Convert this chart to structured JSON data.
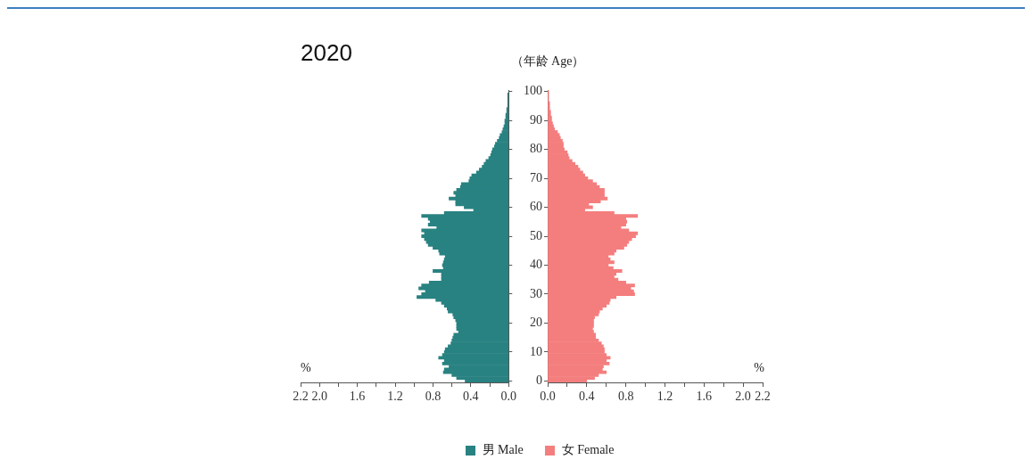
{
  "chart_data": [
    {
      "type": "bar",
      "orientation": "horizontal",
      "title": "2020",
      "xlabel": "%",
      "tick_labels": "x",
      "legend": "bottom",
      "categories": [
        "100",
        null,
        null,
        null,
        null,
        null,
        null,
        null,
        null,
        null,
        "90",
        null,
        null,
        null,
        null,
        null,
        null,
        null,
        null,
        null,
        "80",
        null,
        null,
        null,
        null,
        null,
        null,
        null,
        null,
        null,
        "70",
        null,
        null,
        null,
        null,
        null,
        null,
        null,
        null,
        null,
        "60",
        null,
        null,
        null,
        null,
        null,
        null,
        null,
        null,
        null,
        "50",
        null,
        null,
        null,
        null,
        null,
        null,
        null,
        null,
        null,
        "40",
        null,
        null,
        null,
        null,
        null,
        null,
        null,
        null,
        null,
        "30",
        null,
        null,
        null,
        null,
        null,
        null,
        null,
        null,
        null,
        "20",
        null,
        null,
        null,
        null,
        null,
        null,
        null,
        null,
        null,
        "10",
        null,
        null,
        null,
        null,
        null,
        null,
        null,
        null,
        null,
        "0"
      ],
      "xlim": [
        2.2,
        0
      ],
      "xticks": [
        {
          "value": 2.2,
          "label": "2.2"
        },
        {
          "value": 2,
          "label": "2.0"
        },
        {
          "value": 1.8,
          "label": null
        },
        {
          "value": 1.6,
          "label": "1.6"
        },
        {
          "value": 1.4,
          "label": null
        },
        {
          "value": 1.2,
          "label": "1.2"
        },
        {
          "value": 1,
          "label": null
        },
        {
          "value": 0.8,
          "label": "0.8"
        },
        {
          "value": 0.6,
          "label": null
        },
        {
          "value": 0.4,
          "label": "0.4"
        },
        {
          "value": 0.2,
          "label": null
        },
        {
          "value": 0,
          "label": "0.0"
        }
      ],
      "series": [
        {
          "name": "男 Male",
          "color": "#288281",
          "values": [
            0.0,
            0.01,
            0.01,
            0.01,
            0.01,
            0.01,
            0.02,
            0.02,
            0.03,
            0.03,
            0.04,
            0.04,
            0.05,
            0.06,
            0.07,
            0.09,
            0.1,
            0.12,
            0.14,
            0.15,
            0.17,
            0.18,
            0.19,
            0.21,
            0.24,
            0.26,
            0.28,
            0.31,
            0.34,
            0.39,
            0.41,
            0.42,
            0.5,
            0.51,
            0.55,
            0.58,
            0.56,
            0.63,
            0.56,
            0.56,
            0.47,
            0.37,
            0.68,
            0.92,
            0.85,
            0.83,
            0.85,
            0.76,
            0.92,
            0.89,
            0.92,
            0.89,
            0.87,
            0.85,
            0.8,
            0.74,
            0.73,
            0.67,
            0.68,
            0.69,
            0.7,
            0.69,
            0.8,
            0.71,
            0.71,
            0.71,
            0.84,
            0.92,
            0.95,
            0.88,
            0.92,
            0.97,
            0.77,
            0.71,
            0.68,
            0.65,
            0.64,
            0.59,
            0.58,
            0.56,
            0.55,
            0.55,
            0.55,
            0.53,
            0.58,
            0.59,
            0.6,
            0.61,
            0.64,
            0.67,
            0.68,
            0.7,
            0.74,
            0.68,
            0.7,
            0.63,
            0.68,
            0.69,
            0.6,
            0.55,
            0.46
          ]
        }
      ]
    },
    {
      "type": "bar",
      "orientation": "horizontal",
      "ylabel": "（年龄 Age）",
      "xlabel": "%",
      "legend": "bottom",
      "categories": [
        "100",
        null,
        null,
        null,
        null,
        null,
        null,
        null,
        null,
        null,
        "90",
        null,
        null,
        null,
        null,
        null,
        null,
        null,
        null,
        null,
        "80",
        null,
        null,
        null,
        null,
        null,
        null,
        null,
        null,
        null,
        "70",
        null,
        null,
        null,
        null,
        null,
        null,
        null,
        null,
        null,
        "60",
        null,
        null,
        null,
        null,
        null,
        null,
        null,
        null,
        null,
        "50",
        null,
        null,
        null,
        null,
        null,
        null,
        null,
        null,
        null,
        "40",
        null,
        null,
        null,
        null,
        null,
        null,
        null,
        null,
        null,
        "30",
        null,
        null,
        null,
        null,
        null,
        null,
        null,
        null,
        null,
        "20",
        null,
        null,
        null,
        null,
        null,
        null,
        null,
        null,
        null,
        "10",
        null,
        null,
        null,
        null,
        null,
        null,
        null,
        null,
        null,
        "0"
      ],
      "xlim": [
        0,
        2.2
      ],
      "xticks": [
        {
          "value": 0,
          "label": "0.0"
        },
        {
          "value": 0.2,
          "label": null
        },
        {
          "value": 0.4,
          "label": "0.4"
        },
        {
          "value": 0.6,
          "label": null
        },
        {
          "value": 0.8,
          "label": "0.8"
        },
        {
          "value": 1,
          "label": null
        },
        {
          "value": 1.2,
          "label": "1.2"
        },
        {
          "value": 1.4,
          "label": null
        },
        {
          "value": 1.6,
          "label": "1.6"
        },
        {
          "value": 1.8,
          "label": null
        },
        {
          "value": 2,
          "label": "2.0"
        },
        {
          "value": 2.2,
          "label": "2.2"
        }
      ],
      "series": [
        {
          "name": "女 Female",
          "color": "#f47e7e",
          "values": [
            0.01,
            0.01,
            0.01,
            0.01,
            0.02,
            0.02,
            0.02,
            0.03,
            0.03,
            0.04,
            0.04,
            0.05,
            0.06,
            0.07,
            0.1,
            0.12,
            0.13,
            0.15,
            0.16,
            0.16,
            0.17,
            0.2,
            0.21,
            0.22,
            0.25,
            0.28,
            0.31,
            0.33,
            0.36,
            0.38,
            0.41,
            0.46,
            0.5,
            0.53,
            0.58,
            0.58,
            0.58,
            0.61,
            0.54,
            0.42,
            0.46,
            0.38,
            0.68,
            0.92,
            0.8,
            0.81,
            0.8,
            0.75,
            0.83,
            0.92,
            0.9,
            0.86,
            0.83,
            0.81,
            0.78,
            0.7,
            0.68,
            0.62,
            0.64,
            0.68,
            0.62,
            0.67,
            0.76,
            0.7,
            0.68,
            0.72,
            0.8,
            0.89,
            0.85,
            0.88,
            0.89,
            0.7,
            0.64,
            0.63,
            0.6,
            0.56,
            0.53,
            0.52,
            0.48,
            0.47,
            0.47,
            0.47,
            0.46,
            0.47,
            0.49,
            0.49,
            0.52,
            0.55,
            0.57,
            0.58,
            0.58,
            0.6,
            0.64,
            0.6,
            0.63,
            0.57,
            0.56,
            0.6,
            0.52,
            0.48,
            0.4
          ]
        }
      ]
    }
  ]
}
